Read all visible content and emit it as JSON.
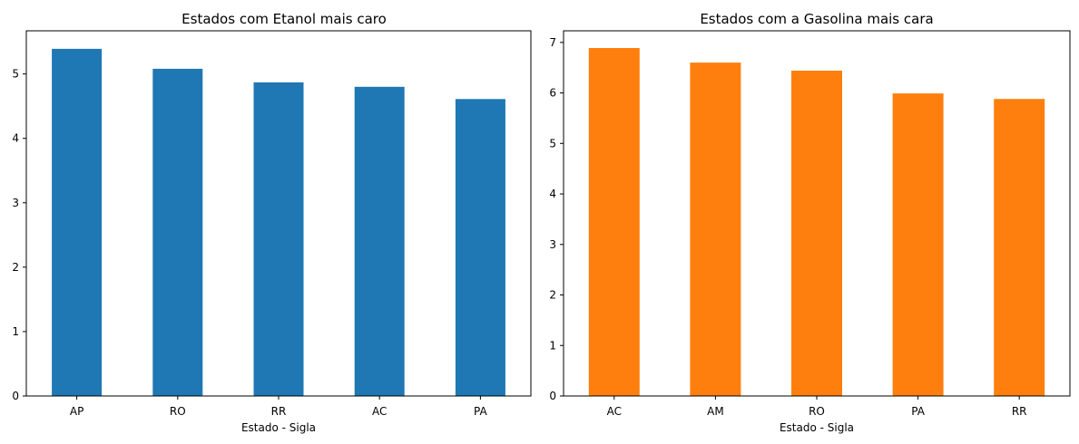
{
  "chart_data": [
    {
      "type": "bar",
      "title": "Estados com Etanol mais caro",
      "xlabel": "Estado - Sigla",
      "ylabel": "",
      "categories": [
        "AP",
        "RO",
        "RR",
        "AC",
        "PA"
      ],
      "values": [
        5.39,
        5.08,
        4.87,
        4.8,
        4.61
      ],
      "ylim": [
        0,
        5.67
      ],
      "yticks": [
        0,
        1,
        2,
        3,
        4,
        5
      ],
      "color": "#1f77b4",
      "grid": false
    },
    {
      "type": "bar",
      "title": "Estados com a Gasolina mais cara",
      "xlabel": "Estado - Sigla",
      "ylabel": "",
      "categories": [
        "AC",
        "AM",
        "RO",
        "PA",
        "RR"
      ],
      "values": [
        6.89,
        6.6,
        6.44,
        5.99,
        5.88
      ],
      "ylim": [
        0,
        7.23
      ],
      "yticks": [
        0,
        1,
        2,
        3,
        4,
        5,
        6,
        7
      ],
      "color": "#ff7f0e",
      "grid": false
    }
  ]
}
